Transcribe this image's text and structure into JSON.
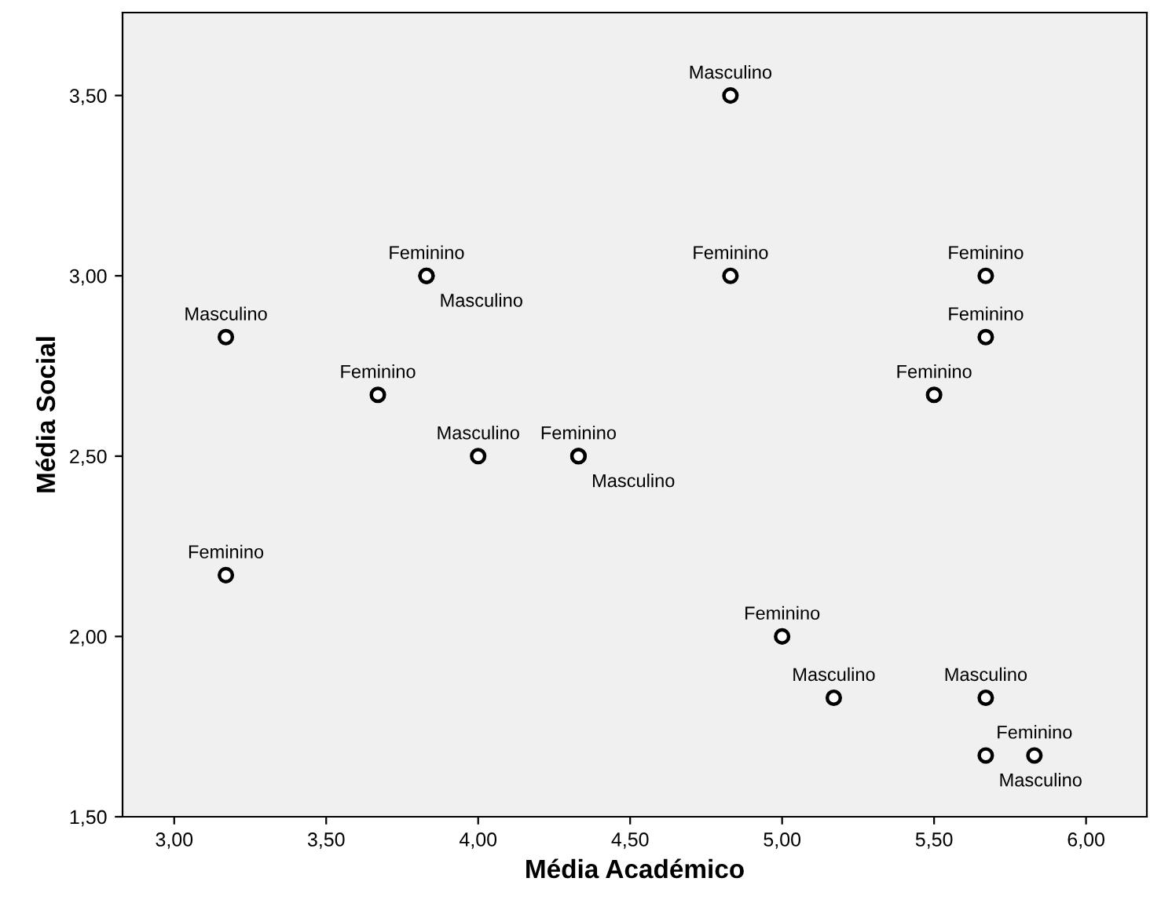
{
  "chart_data": {
    "type": "scatter",
    "xlabel": "Média Académico",
    "ylabel": "Média Social",
    "series": [
      {
        "color": "#000000",
        "x": [
          4.83,
          3.83,
          3.83,
          4.83,
          5.67,
          3.17,
          5.67,
          3.67,
          5.5,
          4.0,
          4.33,
          4.33,
          3.17,
          5.0,
          5.17,
          5.67,
          5.67,
          5.83
        ],
        "values": [
          3.5,
          3.0,
          3.0,
          3.0,
          3.0,
          2.83,
          2.83,
          2.67,
          2.67,
          2.5,
          2.5,
          2.5,
          2.17,
          2.0,
          1.83,
          1.83,
          1.67,
          1.67
        ],
        "value_labels": [
          "Masculino",
          "Feminino",
          "Masculino",
          "Feminino",
          "Feminino",
          "Masculino",
          "Feminino",
          "Feminino",
          "Feminino",
          "Masculino",
          "Feminino",
          "Masculino",
          "Feminino",
          "Feminino",
          "Masculino",
          "Masculino",
          "Masculino",
          "Feminino"
        ]
      }
    ],
    "marker": "circle",
    "xlim": [
      2.83,
      6.2
    ],
    "ylim": [
      1.5,
      3.73
    ],
    "xticks": [
      {
        "value": 3.0,
        "label": "3,00"
      },
      {
        "value": 3.5,
        "label": "3,50"
      },
      {
        "value": 4.0,
        "label": "4,00"
      },
      {
        "value": 4.5,
        "label": "4,50"
      },
      {
        "value": 5.0,
        "label": "5,00"
      },
      {
        "value": 5.5,
        "label": "5,50"
      },
      {
        "value": 6.0,
        "label": "6,00"
      }
    ],
    "yticks": [
      {
        "value": 1.5,
        "label": "1,50"
      },
      {
        "value": 2.0,
        "label": "2,00"
      },
      {
        "value": 2.5,
        "label": "2,50"
      },
      {
        "value": 3.0,
        "label": "3,00"
      },
      {
        "value": 3.5,
        "label": "3,50"
      }
    ],
    "grid": false,
    "legend": false
  }
}
